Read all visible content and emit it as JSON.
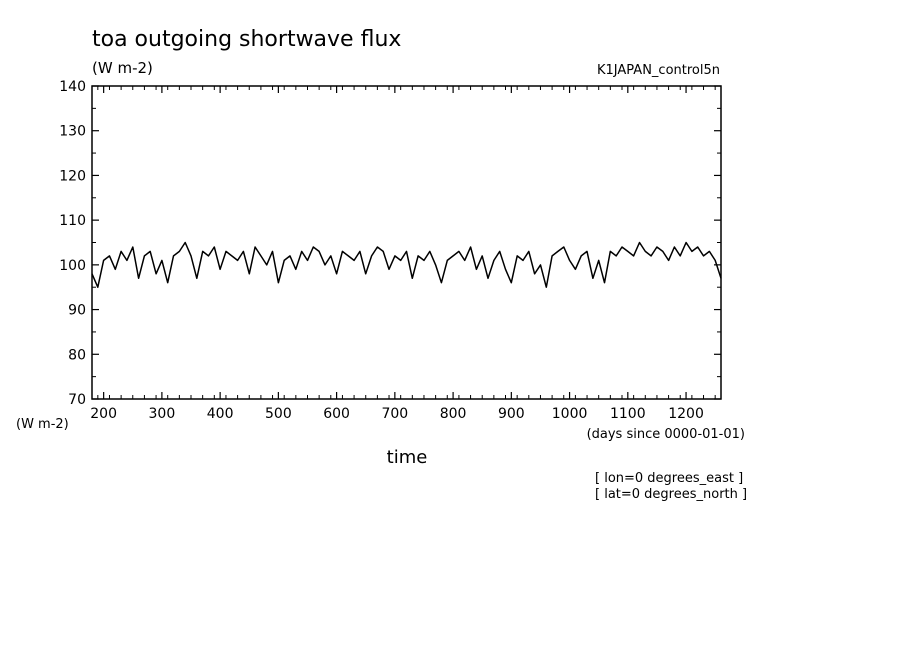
{
  "chart_data": {
    "type": "line",
    "title": "toa outgoing shortwave flux",
    "units_label": "(W m-2)",
    "run_label": "K1JAPAN_control5n",
    "xlabel": "time",
    "x_units": "(days since 0000-01-01)",
    "y_units_label": "(W m-2)",
    "xlim": [
      180,
      1260
    ],
    "ylim": [
      70,
      140
    ],
    "x_ticks": [
      200,
      300,
      400,
      500,
      600,
      700,
      800,
      900,
      1000,
      1100,
      1200
    ],
    "y_ticks": [
      70,
      80,
      90,
      100,
      110,
      120,
      130,
      140
    ],
    "annotations": [
      "[ lon=0 degrees_east ]",
      "[ lat=0 degrees_north ]"
    ],
    "line_color": "#000000",
    "series": [
      {
        "x": [
          180,
          190,
          200,
          210,
          220,
          230,
          240,
          250,
          260,
          270,
          280,
          290,
          300,
          310,
          320,
          330,
          340,
          350,
          360,
          370,
          380,
          390,
          400,
          410,
          420,
          430,
          440,
          450,
          460,
          470,
          480,
          490,
          500,
          510,
          520,
          530,
          540,
          550,
          560,
          570,
          580,
          590,
          600,
          610,
          620,
          630,
          640,
          650,
          660,
          670,
          680,
          690,
          700,
          710,
          720,
          730,
          740,
          750,
          760,
          770,
          780,
          790,
          800,
          810,
          820,
          830,
          840,
          850,
          860,
          870,
          880,
          890,
          900,
          910,
          920,
          930,
          940,
          950,
          960,
          970,
          980,
          990,
          1000,
          1010,
          1020,
          1030,
          1040,
          1050,
          1060,
          1070,
          1080,
          1090,
          1100,
          1110,
          1120,
          1130,
          1140,
          1150,
          1160,
          1170,
          1180,
          1190,
          1200,
          1210,
          1220,
          1230,
          1240,
          1250,
          1260
        ],
        "values": [
          98,
          95,
          101,
          102,
          99,
          103,
          101,
          104,
          97,
          102,
          103,
          98,
          101,
          96,
          102,
          103,
          105,
          102,
          97,
          103,
          102,
          104,
          99,
          103,
          102,
          101,
          103,
          98,
          104,
          102,
          100,
          103,
          96,
          101,
          102,
          99,
          103,
          101,
          104,
          103,
          100,
          102,
          98,
          103,
          102,
          101,
          103,
          98,
          102,
          104,
          103,
          99,
          102,
          101,
          103,
          97,
          102,
          101,
          103,
          100,
          96,
          101,
          102,
          103,
          101,
          104,
          99,
          102,
          97,
          101,
          103,
          99,
          96,
          102,
          101,
          103,
          98,
          100,
          95,
          102,
          103,
          104,
          101,
          99,
          102,
          103,
          97,
          101,
          96,
          103,
          102,
          104,
          103,
          102,
          105,
          103,
          102,
          104,
          103,
          101,
          104,
          102,
          105,
          103,
          104,
          102,
          103,
          101,
          97
        ]
      }
    ]
  }
}
